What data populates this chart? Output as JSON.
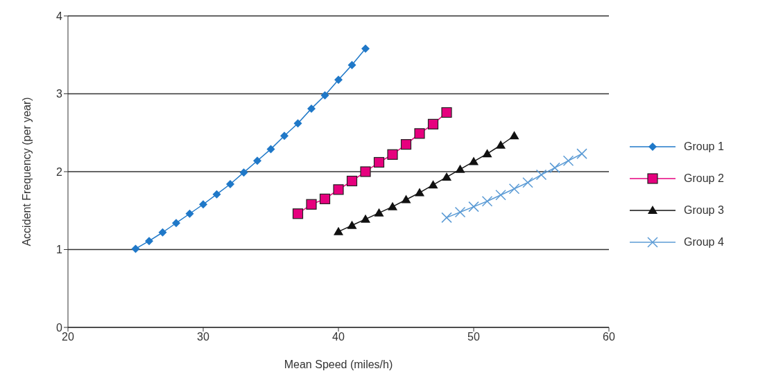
{
  "chart_data": {
    "type": "line",
    "xlabel": "Mean Speed (miles/h)",
    "ylabel": "Accident Frequency (per year)",
    "xlim": [
      20,
      60
    ],
    "xticks": [
      20,
      30,
      40,
      50,
      60
    ],
    "ylim": [
      0,
      4
    ],
    "yticks": [
      0,
      1,
      2,
      3,
      4
    ],
    "grid": "y",
    "legend": "right",
    "series": [
      {
        "name": "Group 1",
        "color": "#1f78c8",
        "marker": "diamond",
        "x": [
          25,
          26,
          27,
          28,
          29,
          30,
          31,
          32,
          33,
          34,
          35,
          36,
          37,
          38,
          39,
          40,
          41,
          42
        ],
        "values": [
          1.01,
          1.11,
          1.22,
          1.34,
          1.46,
          1.58,
          1.71,
          1.84,
          1.99,
          2.14,
          2.29,
          2.46,
          2.62,
          2.81,
          2.98,
          3.18,
          3.37,
          3.58
        ]
      },
      {
        "name": "Group 2",
        "color": "#e6007e",
        "marker": "square",
        "x": [
          37,
          38,
          39,
          40,
          41,
          42,
          43,
          44,
          45,
          46,
          47,
          48
        ],
        "values": [
          1.46,
          1.58,
          1.65,
          1.77,
          1.88,
          2.0,
          2.12,
          2.22,
          2.35,
          2.49,
          2.61,
          2.76
        ]
      },
      {
        "name": "Group 3",
        "color": "#111111",
        "marker": "triangle",
        "x": [
          40,
          41,
          42,
          43,
          44,
          45,
          46,
          47,
          48,
          49,
          50,
          51,
          52,
          53
        ],
        "values": [
          1.23,
          1.31,
          1.39,
          1.47,
          1.55,
          1.64,
          1.73,
          1.83,
          1.93,
          2.03,
          2.13,
          2.23,
          2.34,
          2.46
        ]
      },
      {
        "name": "Group 4",
        "color": "#5b9bd5",
        "marker": "cross",
        "x": [
          48,
          49,
          50,
          51,
          52,
          53,
          54,
          55,
          56,
          57,
          58
        ],
        "values": [
          1.41,
          1.48,
          1.55,
          1.62,
          1.7,
          1.78,
          1.86,
          1.96,
          2.05,
          2.14,
          2.23
        ]
      }
    ]
  }
}
